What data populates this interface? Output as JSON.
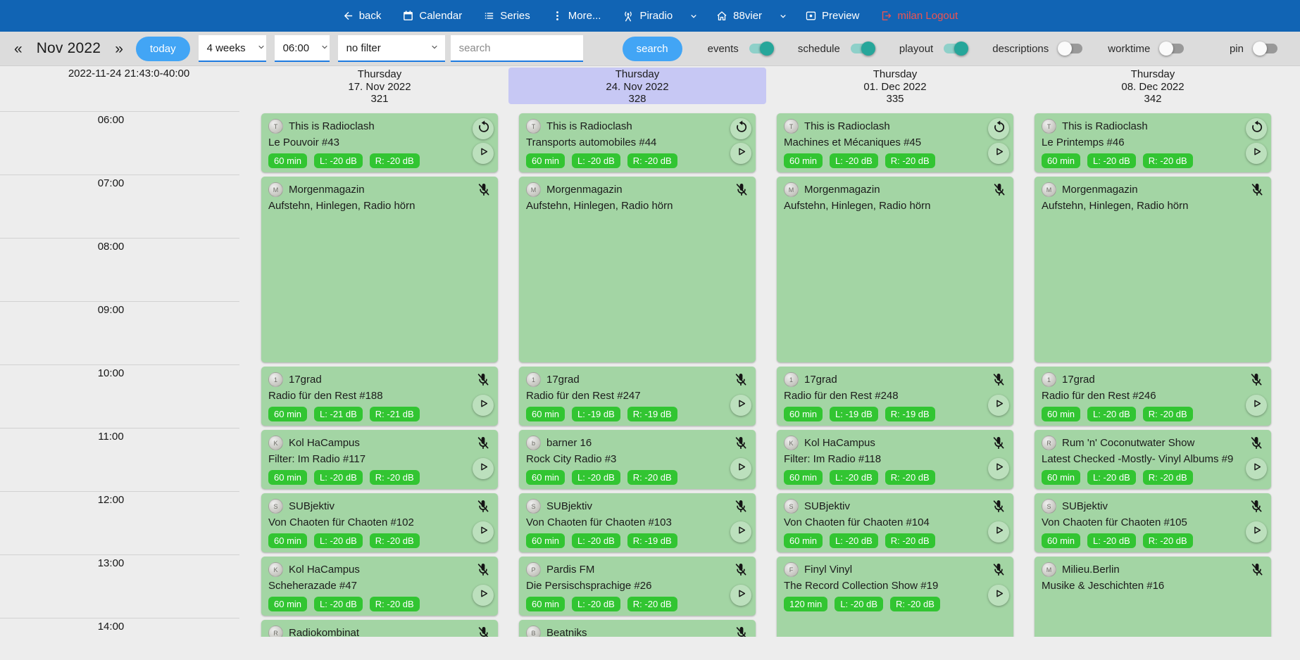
{
  "navbar": {
    "back": "back",
    "calendar": "Calendar",
    "series": "Series",
    "more": "More...",
    "station": "Piradio",
    "channel": "88vier",
    "preview": "Preview",
    "logout": "milan Logout"
  },
  "toolbar": {
    "prev": "«",
    "next": "»",
    "month": "Nov 2022",
    "today_label": "today",
    "range_select": "4 weeks",
    "time_select": "06:00",
    "filter_select": "no filter",
    "search_placeholder": "search",
    "search_label": "search",
    "toggles": [
      {
        "label": "events",
        "on": true
      },
      {
        "label": "schedule",
        "on": true
      },
      {
        "label": "playout",
        "on": true
      },
      {
        "label": "descriptions",
        "on": false
      },
      {
        "label": "worktime",
        "on": false
      },
      {
        "label": "pin",
        "on": false
      }
    ]
  },
  "timeline": {
    "timestamp": "2022-11-24 21:43:0-40:00",
    "hours": [
      "06:00",
      "07:00",
      "08:00",
      "09:00",
      "10:00",
      "11:00",
      "12:00",
      "13:00",
      "14:00"
    ]
  },
  "days": [
    {
      "weekday": "Thursday",
      "date": "17. Nov 2022",
      "day_number": "321",
      "highlighted": false,
      "events": [
        {
          "title": "This is Radioclash",
          "subtitle": "Le Pouvoir #43",
          "badges": [
            "60 min",
            "L: -20 dB",
            "R: -20 dB"
          ],
          "start": "06:00",
          "hours": 1,
          "repeat": true,
          "mic_off": false,
          "play": true
        },
        {
          "title": "Morgenmagazin",
          "subtitle": "Aufstehn, Hinlegen, Radio hörn",
          "badges": [],
          "start": "07:00",
          "hours": 3,
          "repeat": false,
          "mic_off": true,
          "play": false
        },
        {
          "title": "17grad",
          "subtitle": "Radio für den Rest #188",
          "badges": [
            "60 min",
            "L: -21 dB",
            "R: -21 dB"
          ],
          "start": "10:00",
          "hours": 1,
          "repeat": false,
          "mic_off": true,
          "play": true
        },
        {
          "title": "Kol HaCampus",
          "subtitle": "Filter: Im Radio #117",
          "badges": [
            "60 min",
            "L: -20 dB",
            "R: -20 dB"
          ],
          "start": "11:00",
          "hours": 1,
          "repeat": false,
          "mic_off": true,
          "play": true
        },
        {
          "title": "SUBjektiv",
          "subtitle": "Von Chaoten für Chaoten #102",
          "badges": [
            "60 min",
            "L: -20 dB",
            "R: -20 dB"
          ],
          "start": "12:00",
          "hours": 1,
          "repeat": false,
          "mic_off": true,
          "play": true
        },
        {
          "title": "Kol HaCampus",
          "subtitle": "Scheherazade #47",
          "badges": [
            "60 min",
            "L: -20 dB",
            "R: -20 dB"
          ],
          "start": "13:00",
          "hours": 1,
          "repeat": false,
          "mic_off": true,
          "play": true
        },
        {
          "title": "Radiokombinat",
          "subtitle": "",
          "badges": [],
          "start": "14:00",
          "hours": 1,
          "repeat": false,
          "mic_off": true,
          "play": false
        }
      ]
    },
    {
      "weekday": "Thursday",
      "date": "24. Nov 2022",
      "day_number": "328",
      "highlighted": true,
      "events": [
        {
          "title": "This is Radioclash",
          "subtitle": "Transports automobiles #44",
          "badges": [
            "60 min",
            "L: -20 dB",
            "R: -20 dB"
          ],
          "start": "06:00",
          "hours": 1,
          "repeat": true,
          "mic_off": false,
          "play": true
        },
        {
          "title": "Morgenmagazin",
          "subtitle": "Aufstehn, Hinlegen, Radio hörn",
          "badges": [],
          "start": "07:00",
          "hours": 3,
          "repeat": false,
          "mic_off": true,
          "play": false
        },
        {
          "title": "17grad",
          "subtitle": "Radio für den Rest #247",
          "badges": [
            "60 min",
            "L: -19 dB",
            "R: -19 dB"
          ],
          "start": "10:00",
          "hours": 1,
          "repeat": false,
          "mic_off": true,
          "play": true
        },
        {
          "title": "barner 16",
          "subtitle": "Rock City Radio #3",
          "badges": [
            "60 min",
            "L: -20 dB",
            "R: -20 dB"
          ],
          "start": "11:00",
          "hours": 1,
          "repeat": false,
          "mic_off": true,
          "play": true
        },
        {
          "title": "SUBjektiv",
          "subtitle": "Von Chaoten für Chaoten #103",
          "badges": [
            "60 min",
            "L: -20 dB",
            "R: -19 dB"
          ],
          "start": "12:00",
          "hours": 1,
          "repeat": false,
          "mic_off": true,
          "play": true
        },
        {
          "title": "Pardis FM",
          "subtitle": "Die Persischsprachige #26",
          "badges": [
            "60 min",
            "L: -20 dB",
            "R: -20 dB"
          ],
          "start": "13:00",
          "hours": 1,
          "repeat": false,
          "mic_off": true,
          "play": true
        },
        {
          "title": "Beatniks",
          "subtitle": "",
          "badges": [],
          "start": "14:00",
          "hours": 1,
          "repeat": false,
          "mic_off": true,
          "play": false
        }
      ]
    },
    {
      "weekday": "Thursday",
      "date": "01. Dec 2022",
      "day_number": "335",
      "highlighted": false,
      "events": [
        {
          "title": "This is Radioclash",
          "subtitle": "Machines et Mécaniques #45",
          "badges": [
            "60 min",
            "L: -20 dB",
            "R: -20 dB"
          ],
          "start": "06:00",
          "hours": 1,
          "repeat": true,
          "mic_off": false,
          "play": true
        },
        {
          "title": "Morgenmagazin",
          "subtitle": "Aufstehn, Hinlegen, Radio hörn",
          "badges": [],
          "start": "07:00",
          "hours": 3,
          "repeat": false,
          "mic_off": true,
          "play": false
        },
        {
          "title": "17grad",
          "subtitle": "Radio für den Rest #248",
          "badges": [
            "60 min",
            "L: -19 dB",
            "R: -19 dB"
          ],
          "start": "10:00",
          "hours": 1,
          "repeat": false,
          "mic_off": true,
          "play": true
        },
        {
          "title": "Kol HaCampus",
          "subtitle": "Filter: Im Radio #118",
          "badges": [
            "60 min",
            "L: -20 dB",
            "R: -20 dB"
          ],
          "start": "11:00",
          "hours": 1,
          "repeat": false,
          "mic_off": true,
          "play": true
        },
        {
          "title": "SUBjektiv",
          "subtitle": "Von Chaoten für Chaoten #104",
          "badges": [
            "60 min",
            "L: -20 dB",
            "R: -20 dB"
          ],
          "start": "12:00",
          "hours": 1,
          "repeat": false,
          "mic_off": true,
          "play": true
        },
        {
          "title": "Finyl Vinyl",
          "subtitle": "The Record Collection Show #19",
          "badges": [
            "120 min",
            "L: -20 dB",
            "R: -20 dB"
          ],
          "start": "13:00",
          "hours": 2,
          "repeat": false,
          "mic_off": true,
          "play": true
        }
      ]
    },
    {
      "weekday": "Thursday",
      "date": "08. Dec 2022",
      "day_number": "342",
      "highlighted": false,
      "events": [
        {
          "title": "This is Radioclash",
          "subtitle": "Le Printemps #46",
          "badges": [
            "60 min",
            "L: -20 dB",
            "R: -20 dB"
          ],
          "start": "06:00",
          "hours": 1,
          "repeat": true,
          "mic_off": false,
          "play": true
        },
        {
          "title": "Morgenmagazin",
          "subtitle": "Aufstehn, Hinlegen, Radio hörn",
          "badges": [],
          "start": "07:00",
          "hours": 3,
          "repeat": false,
          "mic_off": true,
          "play": false
        },
        {
          "title": "17grad",
          "subtitle": "Radio für den Rest #246",
          "badges": [
            "60 min",
            "L: -20 dB",
            "R: -20 dB"
          ],
          "start": "10:00",
          "hours": 1,
          "repeat": false,
          "mic_off": true,
          "play": true
        },
        {
          "title": "Rum 'n' Coconutwater Show",
          "subtitle": "Latest Checked -Mostly- Vinyl Albums #9",
          "badges": [
            "60 min",
            "L: -20 dB",
            "R: -20 dB"
          ],
          "start": "11:00",
          "hours": 1,
          "repeat": false,
          "mic_off": true,
          "play": true
        },
        {
          "title": "SUBjektiv",
          "subtitle": "Von Chaoten für Chaoten #105",
          "badges": [
            "60 min",
            "L: -20 dB",
            "R: -20 dB"
          ],
          "start": "12:00",
          "hours": 1,
          "repeat": false,
          "mic_off": true,
          "play": true
        },
        {
          "title": "Milieu.Berlin",
          "subtitle": "Musike & Jeschichten #16",
          "badges": [],
          "start": "13:00",
          "hours": 2,
          "repeat": false,
          "mic_off": true,
          "play": false
        }
      ]
    }
  ],
  "colors": {
    "navbar": "#1164b4",
    "accent": "#42a5f5",
    "logout": "#ef5350",
    "card": "#a3d5a4",
    "badge": "#32c532",
    "highlight": "#c7c8f4",
    "toggle_on": "#26a69a"
  }
}
